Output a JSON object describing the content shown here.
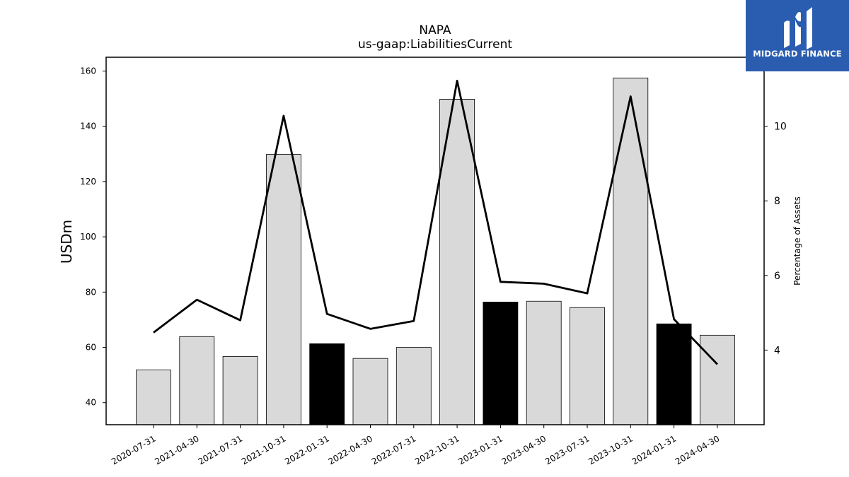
{
  "logo": {
    "name": "MIDGARD FINANCE"
  },
  "chart_data": {
    "type": "bar",
    "title": "NAPA",
    "subtitle": "us-gaap:LiabilitiesCurrent",
    "ylabel": "USDm",
    "y2label": "Percentage of Assets",
    "ylim": [
      32,
      165
    ],
    "y2lim": [
      2.0,
      11.85
    ],
    "yticks": [
      40,
      60,
      80,
      100,
      120,
      140,
      160
    ],
    "y2ticks": [
      4,
      6,
      8,
      10
    ],
    "categories": [
      "2020-07-31",
      "2021-04-30",
      "2021-07-31",
      "2021-10-31",
      "2022-01-31",
      "2022-04-30",
      "2022-07-31",
      "2022-10-31",
      "2023-01-31",
      "2023-04-30",
      "2023-07-31",
      "2023-10-31",
      "2024-01-31",
      "2024-04-30"
    ],
    "series": [
      {
        "type": "bar",
        "values": [
          51.8,
          63.9,
          56.7,
          129.8,
          61.3,
          56.0,
          60.0,
          149.8,
          76.4,
          76.7,
          74.4,
          157.5,
          68.5,
          64.4
        ],
        "colors": [
          "#d9d9d9",
          "#d9d9d9",
          "#d9d9d9",
          "#d9d9d9",
          "#000000",
          "#d9d9d9",
          "#d9d9d9",
          "#d9d9d9",
          "#000000",
          "#d9d9d9",
          "#d9d9d9",
          "#d9d9d9",
          "#000000",
          "#d9d9d9"
        ]
      },
      {
        "type": "line",
        "axis": "right",
        "color": "#000000",
        "values": [
          4.47,
          5.35,
          4.8,
          10.28,
          4.97,
          4.57,
          4.78,
          11.22,
          5.83,
          5.78,
          5.52,
          10.8,
          4.83,
          3.62
        ]
      }
    ],
    "grid": false,
    "legend": "none"
  }
}
